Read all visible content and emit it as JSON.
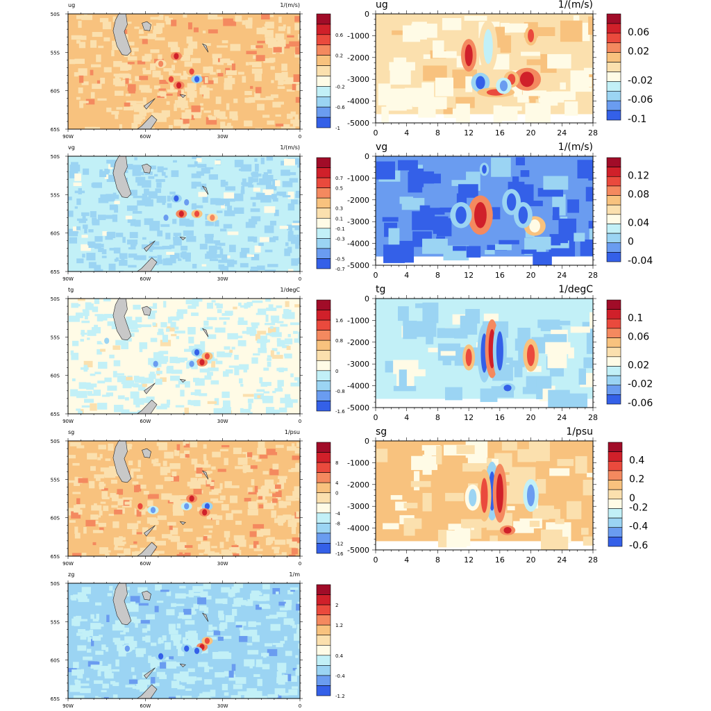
{
  "palette": [
    "#1a0fc7",
    "#3460e8",
    "#6a9cf0",
    "#9bd4f3",
    "#c2f0f7",
    "#fffbe6",
    "#fbe0ae",
    "#f8c27e",
    "#f4895f",
    "#ea4a3d",
    "#d0202a",
    "#a10c28"
  ],
  "land_color": "#c8c8c8",
  "map_bg": {
    "ug": 7,
    "vg": 4,
    "tg": 5,
    "sg": 7,
    "zg": 3
  },
  "section_bg": {
    "ug": 6,
    "vg": 2,
    "tg": 4,
    "sg": 7
  },
  "chart_data": [
    {
      "type": "heatmap",
      "panel": "map",
      "field": "ug",
      "title": "ug",
      "units": "1/(m/s)",
      "x_ticks": [
        "90W",
        "60W",
        "30W",
        "0"
      ],
      "y_ticks": [
        "50S",
        "55S",
        "60S",
        "65S"
      ],
      "colorbar_labels": [
        "0.6",
        "0.2",
        "-0.2",
        "-0.6",
        "-1"
      ],
      "hotspots": [
        {
          "lon": -48,
          "lat": -55.5,
          "level": 10
        },
        {
          "lon": -47,
          "lat": -59.3,
          "level": 10
        },
        {
          "lon": -50,
          "lat": -58.5,
          "level": 9
        },
        {
          "lon": -40,
          "lat": -58.5,
          "level": 1
        },
        {
          "lon": -42,
          "lat": -57.5,
          "level": 9
        },
        {
          "lon": -54,
          "lat": -56.5,
          "level": 8
        }
      ]
    },
    {
      "type": "heatmap",
      "panel": "map",
      "field": "vg",
      "title": "vg",
      "units": "1/(m/s)",
      "x_ticks": [
        "90W",
        "60W",
        "30W",
        "0"
      ],
      "y_ticks": [
        "50S",
        "55S",
        "60S",
        "65S"
      ],
      "colorbar_labels": [
        "0.7",
        "0.5",
        "0.3",
        "0.1",
        "-0.1",
        "-0.3",
        "-0.5",
        "-0.7"
      ],
      "hotspots": [
        {
          "lon": -46,
          "lat": -57.5,
          "level": 10
        },
        {
          "lon": -48,
          "lat": -55.5,
          "level": 1
        },
        {
          "lon": -40,
          "lat": -57.5,
          "level": 9
        },
        {
          "lon": -52,
          "lat": -58,
          "level": 2
        },
        {
          "lon": -34,
          "lat": -58,
          "level": 8
        },
        {
          "lon": -44,
          "lat": -56,
          "level": 2
        }
      ]
    },
    {
      "type": "heatmap",
      "panel": "map",
      "field": "tg",
      "title": "tg",
      "units": "1/degC",
      "x_ticks": [
        "90W",
        "60W",
        "30W",
        "0"
      ],
      "y_ticks": [
        "50S",
        "55S",
        "60S",
        "65S"
      ],
      "colorbar_labels": [
        "1.6",
        "0.8",
        "0",
        "-0.8",
        "-1.6"
      ],
      "hotspots": [
        {
          "lon": -38,
          "lat": -58.3,
          "level": 10
        },
        {
          "lon": -40,
          "lat": -57,
          "level": 1
        },
        {
          "lon": -36,
          "lat": -57.5,
          "level": 9
        },
        {
          "lon": -42,
          "lat": -58.5,
          "level": 2
        },
        {
          "lon": -56,
          "lat": -58.5,
          "level": 2
        },
        {
          "lon": -75,
          "lat": -55.5,
          "level": 3
        }
      ]
    },
    {
      "type": "heatmap",
      "panel": "map",
      "field": "sg",
      "title": "sg",
      "units": "1/psu",
      "x_ticks": [
        "90W",
        "60W",
        "30W",
        "0"
      ],
      "y_ticks": [
        "50S",
        "55S",
        "60S",
        "65S"
      ],
      "colorbar_labels": [
        "8",
        "4",
        "0",
        "-4",
        "-8",
        "-12",
        "-16"
      ],
      "hotspots": [
        {
          "lon": -42,
          "lat": -57.5,
          "level": 10
        },
        {
          "lon": -36,
          "lat": -58.5,
          "level": 1
        },
        {
          "lon": -37,
          "lat": -59.3,
          "level": 10
        },
        {
          "lon": -44,
          "lat": -58.5,
          "level": 2
        },
        {
          "lon": -62,
          "lat": -58.5,
          "level": 9
        },
        {
          "lon": -57,
          "lat": -59,
          "level": 2
        }
      ]
    },
    {
      "type": "heatmap",
      "panel": "map",
      "field": "zg",
      "title": "zg",
      "units": "1/m",
      "x_ticks": [
        "90W",
        "60W",
        "30W",
        "0"
      ],
      "y_ticks": [
        "50S",
        "55S",
        "60S",
        "65S"
      ],
      "colorbar_labels": [
        "2",
        "1.2",
        "0.4",
        "-0.4",
        "-1.2"
      ],
      "hotspots": [
        {
          "lon": -38,
          "lat": -58.3,
          "level": 10
        },
        {
          "lon": -40,
          "lat": -58.8,
          "level": 1
        },
        {
          "lon": -44,
          "lat": -58.5,
          "level": 1
        },
        {
          "lon": -54,
          "lat": -59.5,
          "level": 1
        },
        {
          "lon": -67,
          "lat": -58.5,
          "level": 2
        },
        {
          "lon": -36,
          "lat": -57.5,
          "level": 9
        }
      ]
    },
    {
      "type": "heatmap",
      "panel": "section",
      "field": "ug",
      "title": "ug",
      "units": "1/(m/s)",
      "x_ticks": [
        "0",
        "4",
        "8",
        "12",
        "16",
        "20",
        "24",
        "28"
      ],
      "y_ticks": [
        "0",
        "-1000",
        "-2000",
        "-3000",
        "-4000",
        "-5000"
      ],
      "colorbar_labels": [
        "0.06",
        "0.02",
        "-0.02",
        "-0.06",
        "-0.1"
      ],
      "blobs": [
        {
          "x": 12,
          "depth": -1900,
          "level": 10,
          "w": 0.5,
          "h": 500
        },
        {
          "x": 13.5,
          "depth": -3150,
          "level": 1,
          "w": 0.6,
          "h": 300
        },
        {
          "x": 19.5,
          "depth": -3000,
          "level": 10,
          "w": 0.9,
          "h": 350
        },
        {
          "x": 15.5,
          "depth": -3600,
          "level": 9,
          "w": 1.2,
          "h": 150
        },
        {
          "x": 20,
          "depth": -1000,
          "level": 9,
          "w": 0.4,
          "h": 300
        },
        {
          "x": 17.5,
          "depth": -3000,
          "level": 9,
          "w": 0.5,
          "h": 250
        },
        {
          "x": 14.5,
          "depth": -1500,
          "level": 4,
          "w": 0.6,
          "h": 800
        },
        {
          "x": 16.5,
          "depth": -3300,
          "level": 2,
          "w": 0.5,
          "h": 250
        }
      ]
    },
    {
      "type": "heatmap",
      "panel": "section",
      "field": "vg",
      "title": "vg",
      "units": "1/(m/s)",
      "x_ticks": [
        "0",
        "4",
        "8",
        "12",
        "16",
        "20",
        "24",
        "28"
      ],
      "y_ticks": [
        "0",
        "-1000",
        "-2000",
        "-3000",
        "-4000",
        "-5000"
      ],
      "colorbar_labels": [
        "0.12",
        "0.08",
        "0.04",
        "0",
        "-0.04"
      ],
      "blobs": [
        {
          "x": 13.5,
          "depth": -2700,
          "level": 10,
          "w": 0.8,
          "h": 600
        },
        {
          "x": 11,
          "depth": -2700,
          "level": 1,
          "w": 0.7,
          "h": 400
        },
        {
          "x": 14,
          "depth": -600,
          "level": 1,
          "w": 0.3,
          "h": 200
        },
        {
          "x": 17.5,
          "depth": -2100,
          "level": 1,
          "w": 0.6,
          "h": 400
        },
        {
          "x": 20.5,
          "depth": -3200,
          "level": 5,
          "w": 0.7,
          "h": 300
        },
        {
          "x": 19,
          "depth": -2700,
          "level": 1,
          "w": 0.6,
          "h": 400
        }
      ]
    },
    {
      "type": "heatmap",
      "panel": "section",
      "field": "tg",
      "title": "tg",
      "units": "1/degC",
      "x_ticks": [
        "0",
        "4",
        "8",
        "12",
        "16",
        "20",
        "24",
        "28"
      ],
      "y_ticks": [
        "0",
        "-1000",
        "-2000",
        "-3000",
        "-4000",
        "-5000"
      ],
      "colorbar_labels": [
        "0.1",
        "0.06",
        "0.02",
        "-0.02",
        "-0.06"
      ],
      "blobs": [
        {
          "x": 14,
          "depth": -2500,
          "level": 1,
          "w": 0.45,
          "h": 900
        },
        {
          "x": 15,
          "depth": -2300,
          "level": 10,
          "w": 0.45,
          "h": 900
        },
        {
          "x": 16,
          "depth": -2400,
          "level": 1,
          "w": 0.45,
          "h": 900
        },
        {
          "x": 20,
          "depth": -2600,
          "level": 9,
          "w": 0.5,
          "h": 500
        },
        {
          "x": 12,
          "depth": -2700,
          "level": 9,
          "w": 0.4,
          "h": 400
        },
        {
          "x": 17,
          "depth": -4100,
          "level": 1,
          "w": 0.5,
          "h": 150
        }
      ]
    },
    {
      "type": "heatmap",
      "panel": "section",
      "field": "sg",
      "title": "sg",
      "units": "1/psu",
      "x_ticks": [
        "0",
        "4",
        "8",
        "12",
        "16",
        "20",
        "24",
        "28"
      ],
      "y_ticks": [
        "0",
        "-1000",
        "-2000",
        "-3000",
        "-4000",
        "-5000"
      ],
      "colorbar_labels": [
        "0.4",
        "0.2",
        "0",
        "-0.2",
        "-0.4",
        "-0.6"
      ],
      "blobs": [
        {
          "x": 15,
          "depth": -2300,
          "level": 1,
          "w": 0.45,
          "h": 900
        },
        {
          "x": 16,
          "depth": -2400,
          "level": 10,
          "w": 0.45,
          "h": 900
        },
        {
          "x": 14,
          "depth": -2500,
          "level": 9,
          "w": 0.45,
          "h": 800
        },
        {
          "x": 20,
          "depth": -2500,
          "level": 2,
          "w": 0.5,
          "h": 500
        },
        {
          "x": 12.5,
          "depth": -2600,
          "level": 3,
          "w": 0.5,
          "h": 400
        },
        {
          "x": 17,
          "depth": -4100,
          "level": 10,
          "w": 0.5,
          "h": 150
        }
      ]
    }
  ]
}
